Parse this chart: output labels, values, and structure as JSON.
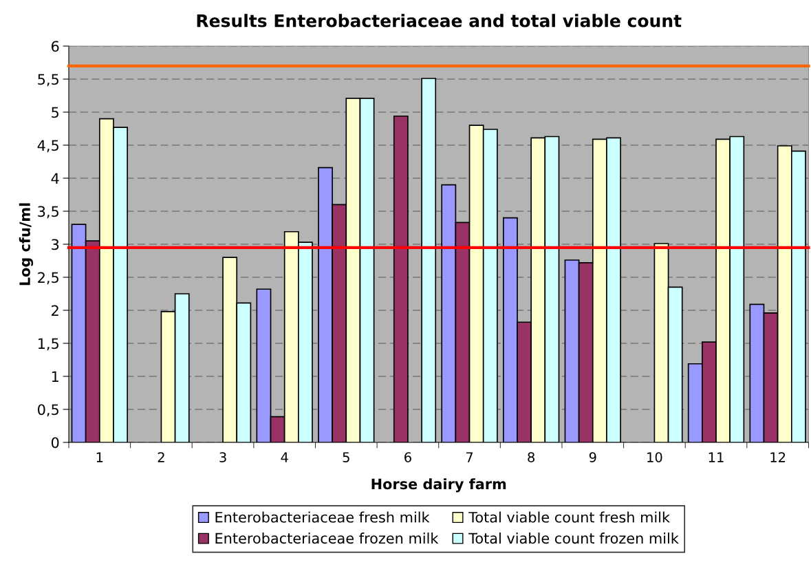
{
  "chart_data": {
    "type": "bar",
    "title": "Results Enterobacteriaceae and total viable count",
    "xlabel": "Horse dairy farm",
    "ylabel": "Log cfu/ml",
    "categories": [
      "1",
      "2",
      "3",
      "4",
      "5",
      "6",
      "7",
      "8",
      "9",
      "10",
      "11",
      "12"
    ],
    "series": [
      {
        "name": "Enterobacteriaceae fresh milk",
        "color": "#9999ff",
        "values": [
          3.3,
          null,
          null,
          2.32,
          4.16,
          null,
          3.9,
          3.4,
          2.76,
          null,
          1.19,
          2.09
        ]
      },
      {
        "name": "Enterobacteriaceae frozen milk",
        "color": "#993366",
        "values": [
          3.05,
          null,
          null,
          0.39,
          3.6,
          4.94,
          3.33,
          1.82,
          2.72,
          null,
          1.52,
          1.96
        ]
      },
      {
        "name": "Total viable count fresh milk",
        "color": "#ffffcc",
        "values": [
          4.9,
          1.98,
          2.8,
          3.19,
          5.21,
          null,
          4.8,
          4.61,
          4.59,
          3.01,
          4.59,
          4.49
        ]
      },
      {
        "name": "Total viable count frozen milk",
        "color": "#ccffff",
        "values": [
          4.77,
          2.25,
          2.11,
          3.03,
          5.21,
          5.51,
          4.74,
          4.63,
          4.61,
          2.35,
          4.63,
          4.41
        ]
      }
    ],
    "ylim": [
      0,
      6
    ],
    "yticks": [
      0,
      {
        "value": 0.5,
        "label": "0,5"
      },
      1,
      {
        "value": 1.5,
        "label": "1,5"
      },
      2,
      {
        "value": 2.5,
        "label": "2,5"
      },
      3,
      {
        "value": 3.5,
        "label": "3,5"
      },
      4,
      {
        "value": 4.5,
        "label": "4,5"
      },
      5,
      {
        "value": 5.5,
        "label": "5,5"
      },
      6
    ],
    "ref_lines": [
      {
        "axis": "y",
        "value": 5.7,
        "label": null,
        "color": "#ff6600"
      },
      {
        "axis": "y",
        "value": 2.95,
        "label": null,
        "color": "#ff0000"
      }
    ],
    "grid": "y",
    "legend": "bottom"
  }
}
